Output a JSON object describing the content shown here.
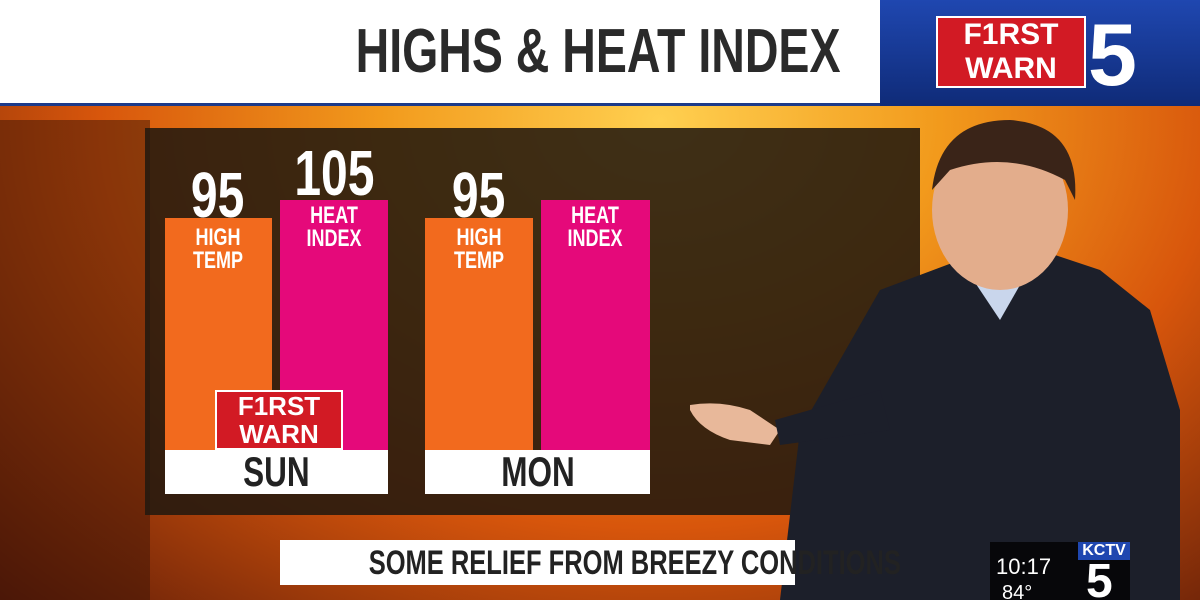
{
  "header": {
    "title": "HIGHS & HEAT INDEX",
    "logo": {
      "line1": "F1RST",
      "line2": "WARN",
      "number": "5"
    }
  },
  "days": [
    {
      "day": "SUN",
      "bars": [
        {
          "value": 95,
          "label": "HIGH TEMP"
        },
        {
          "value": 105,
          "label": "HEAT INDEX"
        }
      ]
    },
    {
      "day": "MON",
      "bars": [
        {
          "value": 95,
          "label": "HIGH TEMP"
        },
        {
          "label": "HEAT INDEX"
        }
      ]
    }
  ],
  "panel_logo": {
    "line1": "F1RST",
    "line2": "WARN"
  },
  "lower_third": "SOME RELIEF FROM BREEZY CONDITIONS",
  "bug": {
    "time": "10:17",
    "temp": "84°",
    "station": "KCTV",
    "number": "5"
  }
}
